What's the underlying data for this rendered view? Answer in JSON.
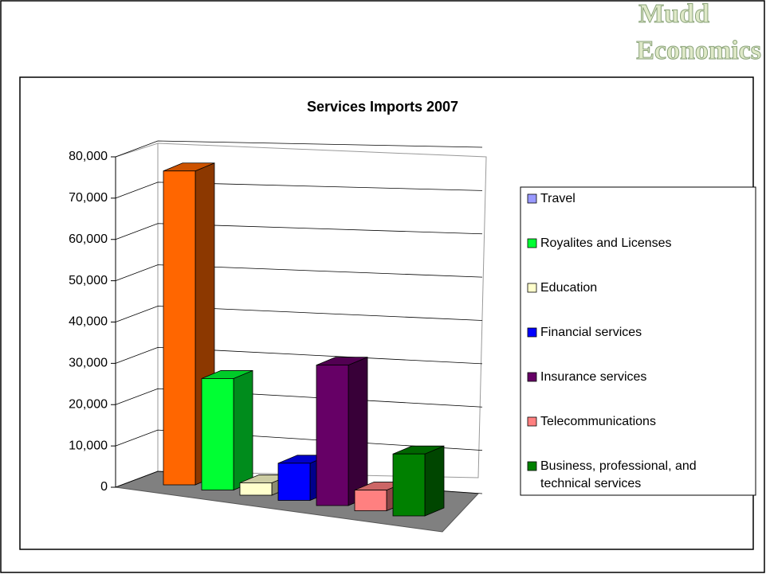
{
  "brand": {
    "line1": "Mudd",
    "line2": "Economics"
  },
  "chart_data": {
    "type": "bar3d",
    "title": "Services Imports 2007",
    "categories": [
      "Travel",
      "Royalites and Licenses",
      "Education",
      "Financial services",
      "Insurance services",
      "Telecommunications",
      "Business, professional, and technical services"
    ],
    "values": [
      76000,
      27000,
      3000,
      9000,
      34000,
      5000,
      15000
    ],
    "colors": [
      "#ff6600",
      "#00ff33",
      "#ffffcc",
      "#0000ff",
      "#660066",
      "#ff8080",
      "#008000"
    ],
    "legend_colors": [
      "#9999ff",
      "#00ff33",
      "#ffffcc",
      "#0000ff",
      "#660066",
      "#ff8080",
      "#008000"
    ],
    "ylim": [
      0,
      80000
    ],
    "yticks": [
      0,
      {
        "value": 10000,
        "label": "10,000"
      },
      {
        "value": 20000,
        "label": "20,000"
      },
      {
        "value": 30000,
        "label": "30,000"
      },
      {
        "value": 40000,
        "label": "40,000"
      },
      {
        "value": 50000,
        "label": "50,000"
      },
      {
        "value": 60000,
        "label": "60,000"
      },
      {
        "value": 70000,
        "label": "70,000"
      },
      {
        "value": 80000,
        "label": "80,000"
      }
    ],
    "grid": true,
    "legend": "right"
  }
}
